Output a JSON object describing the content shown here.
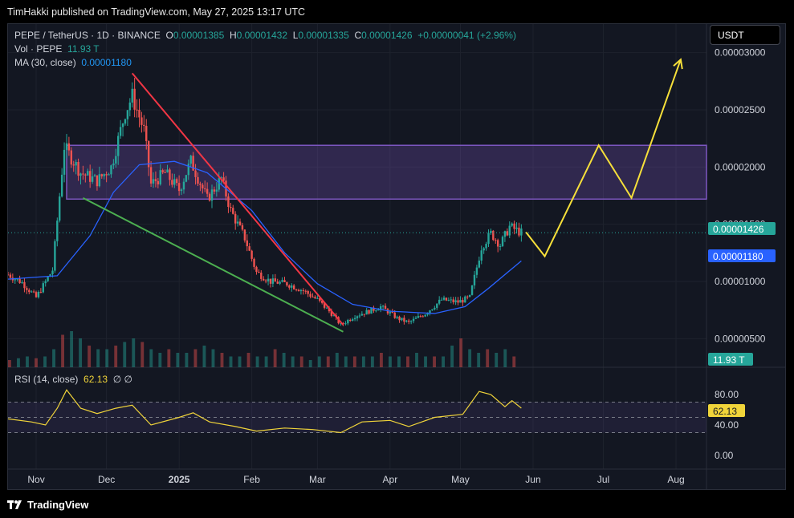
{
  "header": {
    "published": "TimHakki published on TradingView.com, May 27, 2025 13:17 UTC"
  },
  "legend": {
    "symbol": "PEPE / TetherUS · 1D · BINANCE",
    "o_label": "O",
    "o_val": "0.00001385",
    "h_label": "H",
    "h_val": "0.00001432",
    "l_label": "L",
    "l_val": "0.00001335",
    "c_label": "C",
    "c_val": "0.00001426",
    "change": "+0.00000041 (+2.96%)",
    "vol_label": "Vol · PEPE",
    "vol_val": "11.93 T",
    "ma_label": "MA (30, close)",
    "ma_val": "0.00001180",
    "rsi_label": "RSI (14, close)",
    "rsi_val": "62.13",
    "rsi_extra": "∅ ∅"
  },
  "currency_button": "USDT",
  "badges": {
    "last_price": "0.00001426",
    "ma_price": "0.00001180",
    "volume": "11.93 T",
    "rsi": "62.13"
  },
  "colors": {
    "up": "#26a69a",
    "down": "#ef5350",
    "ma": "#2962ff",
    "zone": "#7e57c2",
    "trend_down": "#f23645",
    "trend_support": "#4caf50",
    "projection": "#f7e03a",
    "rsi": "#f0d43a"
  },
  "footer": {
    "brand": "TradingView"
  },
  "chart_data": {
    "type": "candlestick",
    "symbol": "PEPE / TetherUS",
    "interval": "1D",
    "price_axis": {
      "ticks": [
        "0.00003000",
        "0.00002500",
        "0.00002000",
        "0.00001500",
        "0.00001000",
        "0.00000500"
      ],
      "tick_values": [
        3e-05,
        2.5e-05,
        2e-05,
        1.5e-05,
        1e-05,
        5e-06
      ],
      "range": [
        2.5e-06,
        3.25e-05
      ]
    },
    "time_axis": {
      "labels": [
        "Nov",
        "Dec",
        "2025",
        "Feb",
        "Mar",
        "Apr",
        "May",
        "Jun",
        "Jul",
        "Aug"
      ],
      "dates": [
        "2024-11-01",
        "2024-12-01",
        "2025-01-01",
        "2025-02-01",
        "2025-03-01",
        "2025-04-01",
        "2025-05-01",
        "2025-06-01",
        "2025-07-01",
        "2025-08-01"
      ],
      "range": [
        "2024-10-20",
        "2025-08-14"
      ]
    },
    "close_path": [
      [
        "2024-10-20",
        1.06e-05
      ],
      [
        "2024-10-26",
        9.9e-06
      ],
      [
        "2024-11-01",
        8.6e-06
      ],
      [
        "2024-11-08",
        1.1e-05
      ],
      [
        "2024-11-13",
        2.18e-05
      ],
      [
        "2024-11-20",
        1.95e-05
      ],
      [
        "2024-11-27",
        1.88e-05
      ],
      [
        "2024-12-03",
        2e-05
      ],
      [
        "2024-12-09",
        2.48e-05
      ],
      [
        "2024-12-12",
        2.62e-05
      ],
      [
        "2024-12-17",
        2.32e-05
      ],
      [
        "2024-12-20",
        1.85e-05
      ],
      [
        "2024-12-26",
        1.95e-05
      ],
      [
        "2025-01-01",
        1.8e-05
      ],
      [
        "2025-01-06",
        2.05e-05
      ],
      [
        "2025-01-13",
        1.72e-05
      ],
      [
        "2025-01-19",
        1.9e-05
      ],
      [
        "2025-01-23",
        1.62e-05
      ],
      [
        "2025-01-29",
        1.38e-05
      ],
      [
        "2025-02-03",
        1.08e-05
      ],
      [
        "2025-02-09",
        1e-05
      ],
      [
        "2025-02-16",
        9.8e-06
      ],
      [
        "2025-02-23",
        9.2e-06
      ],
      [
        "2025-03-01",
        8.4e-06
      ],
      [
        "2025-03-07",
        7.2e-06
      ],
      [
        "2025-03-11",
        6.2e-06
      ],
      [
        "2025-03-17",
        7e-06
      ],
      [
        "2025-03-23",
        7.4e-06
      ],
      [
        "2025-03-28",
        7.8e-06
      ],
      [
        "2025-04-04",
        6.8e-06
      ],
      [
        "2025-04-09",
        6.4e-06
      ],
      [
        "2025-04-16",
        7.2e-06
      ],
      [
        "2025-04-23",
        8.4e-06
      ],
      [
        "2025-04-30",
        8.2e-06
      ],
      [
        "2025-05-05",
        8.6e-06
      ],
      [
        "2025-05-10",
        1.3e-05
      ],
      [
        "2025-05-14",
        1.42e-05
      ],
      [
        "2025-05-18",
        1.32e-05
      ],
      [
        "2025-05-22",
        1.48e-05
      ],
      [
        "2025-05-27",
        1.426e-05
      ]
    ],
    "ma30_path": [
      [
        "2024-10-20",
        1.02e-05
      ],
      [
        "2024-11-10",
        1.05e-05
      ],
      [
        "2024-11-24",
        1.4e-05
      ],
      [
        "2024-12-04",
        1.78e-05
      ],
      [
        "2024-12-15",
        2.02e-05
      ],
      [
        "2024-12-30",
        2.05e-05
      ],
      [
        "2025-01-13",
        1.95e-05
      ],
      [
        "2025-02-01",
        1.62e-05
      ],
      [
        "2025-02-15",
        1.25e-05
      ],
      [
        "2025-03-01",
        9.8e-06
      ],
      [
        "2025-03-16",
        8e-06
      ],
      [
        "2025-04-01",
        7.4e-06
      ],
      [
        "2025-04-20",
        7.2e-06
      ],
      [
        "2025-05-03",
        7.8e-06
      ],
      [
        "2025-05-13",
        9.4e-06
      ],
      [
        "2025-05-27",
        1.18e-05
      ]
    ],
    "resistance_zone": {
      "from": 1.72e-05,
      "to": 2.19e-05,
      "start": "2024-11-14"
    },
    "trendlines": [
      {
        "name": "downtrend",
        "from": [
          "2024-12-12",
          2.82e-05
        ],
        "to": [
          "2025-03-12",
          6.2e-06
        ]
      },
      {
        "name": "support",
        "from": [
          "2024-11-21",
          1.73e-05
        ],
        "to": [
          "2025-03-12",
          5.6e-06
        ]
      }
    ],
    "projection": [
      [
        "2025-05-29",
        1.43e-05
      ],
      [
        "2025-06-06",
        1.22e-05
      ],
      [
        "2025-06-29",
        2.19e-05
      ],
      [
        "2025-07-13",
        1.73e-05
      ],
      [
        "2025-08-03",
        2.94e-05
      ]
    ],
    "volume": {
      "last": "11.93 T",
      "relative": [
        0.2,
        0.25,
        0.3,
        0.25,
        0.3,
        0.5,
        0.9,
        1.0,
        0.8,
        0.6,
        0.5,
        0.5,
        0.6,
        0.7,
        0.8,
        0.7,
        0.5,
        0.4,
        0.5,
        0.4,
        0.4,
        0.5,
        0.6,
        0.5,
        0.4,
        0.3,
        0.3,
        0.4,
        0.3,
        0.3,
        0.5,
        0.4,
        0.3,
        0.3,
        0.2,
        0.3,
        0.3,
        0.4,
        0.3,
        0.3,
        0.3,
        0.3,
        0.4,
        0.3,
        0.3,
        0.3,
        0.4,
        0.3,
        0.3,
        0.3,
        0.6,
        0.8,
        0.5,
        0.4,
        0.5,
        0.4,
        0.5,
        0.3
      ]
    },
    "rsi": {
      "period": 14,
      "last": 62.13,
      "ticks": [
        "80.00",
        "40.00",
        "0.00"
      ],
      "tick_values": [
        80,
        40,
        0
      ],
      "band": [
        30,
        70
      ],
      "path": [
        [
          "2024-10-20",
          48
        ],
        [
          "2024-10-30",
          44
        ],
        [
          "2024-11-05",
          40
        ],
        [
          "2024-11-10",
          62
        ],
        [
          "2024-11-14",
          86
        ],
        [
          "2024-11-20",
          62
        ],
        [
          "2024-11-27",
          55
        ],
        [
          "2024-12-05",
          62
        ],
        [
          "2024-12-12",
          66
        ],
        [
          "2024-12-20",
          40
        ],
        [
          "2025-01-01",
          50
        ],
        [
          "2025-01-07",
          56
        ],
        [
          "2025-01-14",
          44
        ],
        [
          "2025-01-25",
          38
        ],
        [
          "2025-02-03",
          32
        ],
        [
          "2025-02-15",
          36
        ],
        [
          "2025-02-27",
          34
        ],
        [
          "2025-03-11",
          30
        ],
        [
          "2025-03-20",
          44
        ],
        [
          "2025-04-01",
          46
        ],
        [
          "2025-04-09",
          38
        ],
        [
          "2025-04-20",
          50
        ],
        [
          "2025-05-02",
          54
        ],
        [
          "2025-05-09",
          84
        ],
        [
          "2025-05-14",
          80
        ],
        [
          "2025-05-20",
          64
        ],
        [
          "2025-05-23",
          72
        ],
        [
          "2025-05-27",
          62.13
        ]
      ]
    }
  }
}
